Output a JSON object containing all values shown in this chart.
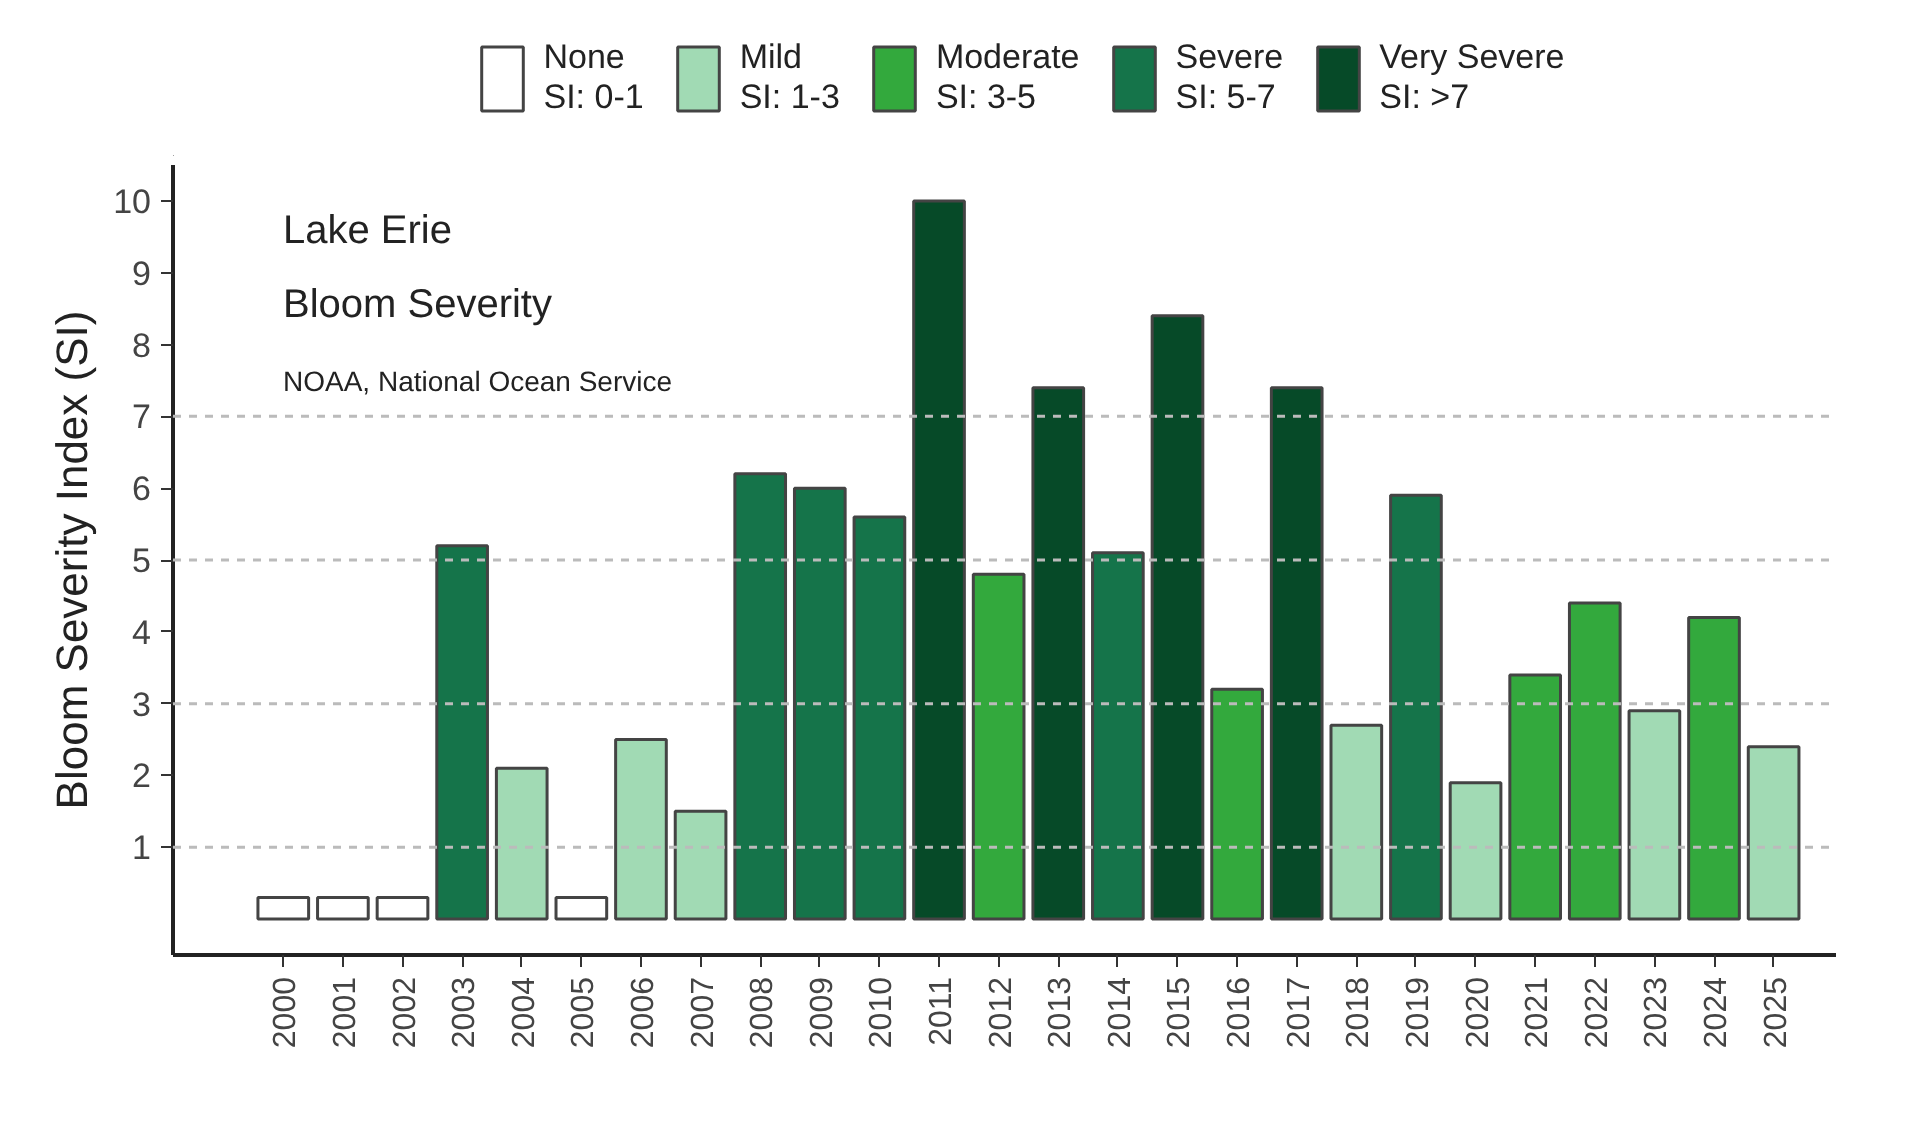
{
  "chart_data": {
    "type": "bar",
    "stacked": true,
    "categories": [
      "2000",
      "2001",
      "2002",
      "2003",
      "2004",
      "2005",
      "2006",
      "2007",
      "2008",
      "2009",
      "2010",
      "2011",
      "2012",
      "2013",
      "2014",
      "2015",
      "2016",
      "2017",
      "2018",
      "2019",
      "2020",
      "2021",
      "2022",
      "2023",
      "2024",
      "2025"
    ],
    "series": [
      {
        "name": "None\nSI: 0-1",
        "color": "#ffffff",
        "values": [
          0.3,
          0.3,
          0.3,
          null,
          null,
          0.3,
          null,
          null,
          null,
          null,
          null,
          null,
          null,
          null,
          null,
          null,
          null,
          null,
          null,
          null,
          null,
          null,
          null,
          null,
          null,
          null
        ]
      },
      {
        "name": "Mild\nSI: 1-3",
        "color": "#a1dab4",
        "values": [
          null,
          null,
          null,
          null,
          2.1,
          null,
          2.5,
          1.5,
          null,
          null,
          null,
          null,
          null,
          null,
          null,
          null,
          null,
          null,
          2.7,
          null,
          1.9,
          null,
          null,
          2.9,
          null,
          2.4
        ]
      },
      {
        "name": "Moderate\nSI: 3-5",
        "color": "#33a93d",
        "values": [
          null,
          null,
          null,
          null,
          null,
          null,
          null,
          null,
          null,
          null,
          null,
          null,
          4.8,
          null,
          null,
          null,
          3.2,
          null,
          null,
          null,
          null,
          3.4,
          4.4,
          null,
          4.2,
          null
        ]
      },
      {
        "name": "Severe\nSI: 5-7",
        "color": "#15744a",
        "values": [
          null,
          null,
          null,
          5.2,
          null,
          null,
          null,
          null,
          6.2,
          6.0,
          5.6,
          null,
          null,
          null,
          5.1,
          null,
          null,
          null,
          null,
          5.9,
          null,
          null,
          null,
          null,
          null,
          null
        ]
      },
      {
        "name": "Very Severe\nSI: >7",
        "color": "#064a28",
        "values": [
          null,
          null,
          null,
          null,
          null,
          null,
          null,
          null,
          null,
          null,
          null,
          10,
          null,
          7.4,
          null,
          8.4,
          null,
          7.4,
          null,
          null,
          null,
          null,
          null,
          null,
          null,
          null
        ]
      }
    ],
    "ylabel": "Bloom Severity Index (SI)",
    "ylim": [
      -0.5,
      10.5
    ],
    "yticks": [
      1,
      2,
      3,
      4,
      5,
      6,
      7,
      8,
      9,
      10
    ],
    "ref_lines": [
      {
        "axis": "y",
        "value": 1,
        "color": "#bbbbbb",
        "line_style": "dashed"
      },
      {
        "axis": "y",
        "value": 3,
        "color": "#bbbbbb",
        "line_style": "dashed"
      },
      {
        "axis": "y",
        "value": 5,
        "color": "#bbbbbb",
        "line_style": "dashed"
      },
      {
        "axis": "y",
        "value": 7,
        "color": "#bbbbbb",
        "line_style": "dashed"
      }
    ],
    "annotations": [
      "Lake Erie",
      "Bloom Severity",
      "NOAA, National Ocean Service"
    ],
    "legend": "top"
  }
}
